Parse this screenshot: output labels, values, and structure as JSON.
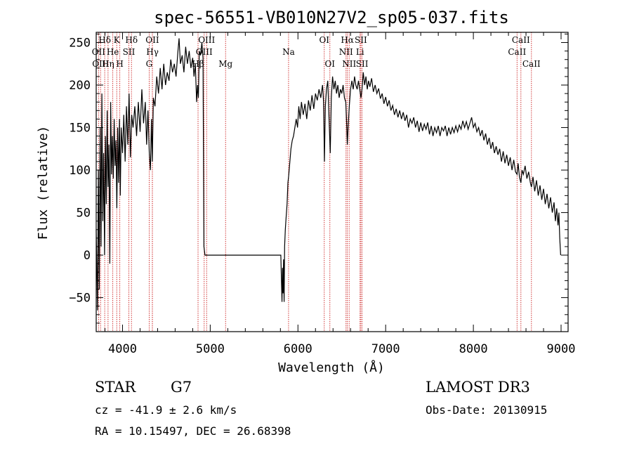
{
  "chart_data": {
    "type": "line",
    "title": "spec-56551-VB010N27V2_sp05-037.fits",
    "xlabel": "Wavelength (Å)",
    "ylabel": "Flux (relative)",
    "xlim": [
      3700,
      9080
    ],
    "ylim": [
      -90,
      262
    ],
    "xticks": [
      4000,
      5000,
      6000,
      7000,
      8000,
      9000
    ],
    "yticks": [
      -50,
      0,
      50,
      100,
      150,
      200,
      250
    ],
    "emission_lines": [
      {
        "label": "Hδ",
        "wave": 3797,
        "row": 0
      },
      {
        "label": "K",
        "wave": 3934,
        "row": 0
      },
      {
        "label": "Hδ",
        "wave": 4102,
        "row": 0
      },
      {
        "label": "OII",
        "wave": 4340,
        "row": 0
      },
      {
        "label": "OIII",
        "wave": 4959,
        "row": 0
      },
      {
        "label": "OI",
        "wave": 6300,
        "row": 0
      },
      {
        "label": "Hα",
        "wave": 6563,
        "row": 0
      },
      {
        "label": "SII",
        "wave": 6717,
        "row": 0
      },
      {
        "label": "CaII",
        "wave": 8542,
        "row": 0
      },
      {
        "label": "OII",
        "wave": 3727,
        "row": 1
      },
      {
        "label": "He",
        "wave": 3889,
        "row": 1
      },
      {
        "label": "SII",
        "wave": 4072,
        "row": 1
      },
      {
        "label": "Hγ",
        "wave": 4341,
        "row": 1
      },
      {
        "label": "OIII",
        "wave": 4931,
        "row": 1
      },
      {
        "label": "Na",
        "wave": 5893,
        "row": 1
      },
      {
        "label": "NII",
        "wave": 6548,
        "row": 1
      },
      {
        "label": "Li",
        "wave": 6708,
        "row": 1
      },
      {
        "label": "CaII",
        "wave": 8498,
        "row": 1
      },
      {
        "label": "OIII",
        "wave": 3750,
        "row": 2
      },
      {
        "label": "Hη",
        "wave": 3835,
        "row": 2
      },
      {
        "label": "H",
        "wave": 3969,
        "row": 2
      },
      {
        "label": "G",
        "wave": 4304,
        "row": 2
      },
      {
        "label": "Hβ",
        "wave": 4861,
        "row": 2
      },
      {
        "label": "Mg",
        "wave": 5175,
        "row": 2
      },
      {
        "label": "OI",
        "wave": 6364,
        "row": 2
      },
      {
        "label": "NII",
        "wave": 6584,
        "row": 2
      },
      {
        "label": "SII",
        "wave": 6731,
        "row": 2
      },
      {
        "label": "CaII",
        "wave": 8662,
        "row": 2
      }
    ],
    "series": [
      {
        "name": "flux",
        "points": [
          [
            3700,
            30
          ],
          [
            3715,
            -65
          ],
          [
            3725,
            100
          ],
          [
            3735,
            -40
          ],
          [
            3745,
            150
          ],
          [
            3755,
            10
          ],
          [
            3765,
            190
          ],
          [
            3775,
            40
          ],
          [
            3785,
            120
          ],
          [
            3795,
            0
          ],
          [
            3805,
            140
          ],
          [
            3815,
            60
          ],
          [
            3825,
            170
          ],
          [
            3835,
            80
          ],
          [
            3845,
            130
          ],
          [
            3855,
            -10
          ],
          [
            3865,
            180
          ],
          [
            3875,
            95
          ],
          [
            3885,
            140
          ],
          [
            3895,
            90
          ],
          [
            3905,
            160
          ],
          [
            3915,
            105
          ],
          [
            3925,
            135
          ],
          [
            3935,
            55
          ],
          [
            3945,
            150
          ],
          [
            3955,
            85
          ],
          [
            3965,
            160
          ],
          [
            3975,
            70
          ],
          [
            3985,
            150
          ],
          [
            4000,
            120
          ],
          [
            4015,
            165
          ],
          [
            4030,
            110
          ],
          [
            4045,
            175
          ],
          [
            4060,
            130
          ],
          [
            4075,
            190
          ],
          [
            4090,
            115
          ],
          [
            4105,
            165
          ],
          [
            4120,
            150
          ],
          [
            4140,
            175
          ],
          [
            4160,
            140
          ],
          [
            4180,
            180
          ],
          [
            4200,
            145
          ],
          [
            4220,
            195
          ],
          [
            4240,
            155
          ],
          [
            4260,
            180
          ],
          [
            4275,
            130
          ],
          [
            4290,
            170
          ],
          [
            4305,
            120
          ],
          [
            4318,
            100
          ],
          [
            4330,
            160
          ],
          [
            4340,
            110
          ],
          [
            4352,
            185
          ],
          [
            4370,
            175
          ],
          [
            4390,
            210
          ],
          [
            4410,
            190
          ],
          [
            4430,
            220
          ],
          [
            4450,
            195
          ],
          [
            4470,
            225
          ],
          [
            4490,
            200
          ],
          [
            4510,
            215
          ],
          [
            4530,
            205
          ],
          [
            4550,
            230
          ],
          [
            4570,
            215
          ],
          [
            4590,
            225
          ],
          [
            4610,
            210
          ],
          [
            4630,
            238
          ],
          [
            4645,
            255
          ],
          [
            4660,
            225
          ],
          [
            4680,
            235
          ],
          [
            4700,
            215
          ],
          [
            4720,
            245
          ],
          [
            4740,
            225
          ],
          [
            4760,
            240
          ],
          [
            4780,
            220
          ],
          [
            4800,
            232
          ],
          [
            4815,
            210
          ],
          [
            4830,
            225
          ],
          [
            4845,
            180
          ],
          [
            4855,
            200
          ],
          [
            4865,
            185
          ],
          [
            4875,
            240
          ],
          [
            4890,
            235
          ],
          [
            4905,
            250
          ],
          [
            4918,
            232
          ],
          [
            4928,
            10
          ],
          [
            4940,
            0
          ],
          [
            5000,
            0
          ],
          [
            5200,
            0
          ],
          [
            5400,
            0
          ],
          [
            5600,
            0
          ],
          [
            5790,
            0
          ],
          [
            5805,
            0
          ],
          [
            5812,
            -30
          ],
          [
            5818,
            -55
          ],
          [
            5824,
            -15
          ],
          [
            5830,
            -45
          ],
          [
            5836,
            -5
          ],
          [
            5842,
            -55
          ],
          [
            5848,
            10
          ],
          [
            5856,
            30
          ],
          [
            5866,
            45
          ],
          [
            5876,
            60
          ],
          [
            5886,
            85
          ],
          [
            5896,
            95
          ],
          [
            5908,
            110
          ],
          [
            5920,
            125
          ],
          [
            5935,
            135
          ],
          [
            5950,
            140
          ],
          [
            5965,
            150
          ],
          [
            5980,
            160
          ],
          [
            5995,
            150
          ],
          [
            6010,
            175
          ],
          [
            6025,
            160
          ],
          [
            6040,
            180
          ],
          [
            6060,
            165
          ],
          [
            6080,
            178
          ],
          [
            6100,
            160
          ],
          [
            6120,
            182
          ],
          [
            6140,
            170
          ],
          [
            6160,
            188
          ],
          [
            6180,
            172
          ],
          [
            6200,
            190
          ],
          [
            6220,
            182
          ],
          [
            6240,
            195
          ],
          [
            6260,
            185
          ],
          [
            6280,
            200
          ],
          [
            6292,
            180
          ],
          [
            6302,
            110
          ],
          [
            6312,
            175
          ],
          [
            6325,
            195
          ],
          [
            6340,
            205
          ],
          [
            6355,
            160
          ],
          [
            6368,
            120
          ],
          [
            6380,
            185
          ],
          [
            6395,
            210
          ],
          [
            6410,
            195
          ],
          [
            6425,
            205
          ],
          [
            6440,
            190
          ],
          [
            6455,
            200
          ],
          [
            6470,
            185
          ],
          [
            6485,
            195
          ],
          [
            6500,
            190
          ],
          [
            6515,
            200
          ],
          [
            6530,
            185
          ],
          [
            6545,
            180
          ],
          [
            6555,
            155
          ],
          [
            6563,
            130
          ],
          [
            6572,
            150
          ],
          [
            6585,
            175
          ],
          [
            6600,
            195
          ],
          [
            6615,
            205
          ],
          [
            6630,
            195
          ],
          [
            6645,
            210
          ],
          [
            6660,
            200
          ],
          [
            6675,
            195
          ],
          [
            6690,
            205
          ],
          [
            6705,
            195
          ],
          [
            6718,
            185
          ],
          [
            6730,
            195
          ],
          [
            6745,
            215
          ],
          [
            6760,
            200
          ],
          [
            6775,
            210
          ],
          [
            6790,
            195
          ],
          [
            6805,
            205
          ],
          [
            6820,
            198
          ],
          [
            6840,
            208
          ],
          [
            6860,
            192
          ],
          [
            6880,
            200
          ],
          [
            6900,
            190
          ],
          [
            6920,
            196
          ],
          [
            6940,
            184
          ],
          [
            6960,
            190
          ],
          [
            6980,
            178
          ],
          [
            7000,
            186
          ],
          [
            7020,
            175
          ],
          [
            7040,
            182
          ],
          [
            7060,
            170
          ],
          [
            7080,
            176
          ],
          [
            7100,
            165
          ],
          [
            7120,
            172
          ],
          [
            7140,
            162
          ],
          [
            7160,
            170
          ],
          [
            7180,
            160
          ],
          [
            7200,
            168
          ],
          [
            7220,
            158
          ],
          [
            7240,
            165
          ],
          [
            7260,
            150
          ],
          [
            7280,
            160
          ],
          [
            7300,
            155
          ],
          [
            7320,
            162
          ],
          [
            7340,
            150
          ],
          [
            7360,
            158
          ],
          [
            7380,
            145
          ],
          [
            7400,
            156
          ],
          [
            7420,
            146
          ],
          [
            7440,
            154
          ],
          [
            7460,
            148
          ],
          [
            7480,
            156
          ],
          [
            7500,
            142
          ],
          [
            7520,
            152
          ],
          [
            7540,
            140
          ],
          [
            7560,
            150
          ],
          [
            7580,
            144
          ],
          [
            7600,
            152
          ],
          [
            7620,
            140
          ],
          [
            7640,
            150
          ],
          [
            7660,
            146
          ],
          [
            7680,
            152
          ],
          [
            7700,
            140
          ],
          [
            7720,
            150
          ],
          [
            7740,
            142
          ],
          [
            7760,
            150
          ],
          [
            7780,
            144
          ],
          [
            7800,
            152
          ],
          [
            7820,
            145
          ],
          [
            7840,
            153
          ],
          [
            7860,
            148
          ],
          [
            7880,
            158
          ],
          [
            7900,
            150
          ],
          [
            7920,
            157
          ],
          [
            7940,
            148
          ],
          [
            7960,
            155
          ],
          [
            7980,
            162
          ],
          [
            8000,
            150
          ],
          [
            8020,
            155
          ],
          [
            8040,
            145
          ],
          [
            8060,
            150
          ],
          [
            8080,
            140
          ],
          [
            8100,
            147
          ],
          [
            8120,
            135
          ],
          [
            8140,
            143
          ],
          [
            8160,
            130
          ],
          [
            8180,
            138
          ],
          [
            8200,
            125
          ],
          [
            8220,
            133
          ],
          [
            8240,
            120
          ],
          [
            8260,
            128
          ],
          [
            8280,
            118
          ],
          [
            8300,
            125
          ],
          [
            8320,
            110
          ],
          [
            8340,
            122
          ],
          [
            8360,
            108
          ],
          [
            8380,
            118
          ],
          [
            8400,
            105
          ],
          [
            8420,
            115
          ],
          [
            8440,
            100
          ],
          [
            8460,
            112
          ],
          [
            8480,
            98
          ],
          [
            8498,
            95
          ],
          [
            8510,
            108
          ],
          [
            8525,
            92
          ],
          [
            8542,
            85
          ],
          [
            8555,
            100
          ],
          [
            8570,
            95
          ],
          [
            8590,
            105
          ],
          [
            8610,
            90
          ],
          [
            8630,
            98
          ],
          [
            8650,
            85
          ],
          [
            8662,
            80
          ],
          [
            8680,
            92
          ],
          [
            8700,
            75
          ],
          [
            8720,
            88
          ],
          [
            8740,
            70
          ],
          [
            8760,
            82
          ],
          [
            8780,
            65
          ],
          [
            8800,
            78
          ],
          [
            8820,
            60
          ],
          [
            8840,
            72
          ],
          [
            8860,
            55
          ],
          [
            8880,
            68
          ],
          [
            8900,
            50
          ],
          [
            8920,
            62
          ],
          [
            8935,
            40
          ],
          [
            8950,
            55
          ],
          [
            8965,
            35
          ],
          [
            8975,
            50
          ],
          [
            8985,
            20
          ],
          [
            8995,
            0
          ]
        ]
      }
    ]
  },
  "info": {
    "object_class": "STAR",
    "subclass": "G7",
    "survey": "LAMOST DR3",
    "redshift_text": "cz = -41.9 ± 2.6 km/s",
    "obs_date": "Obs-Date: 20130915",
    "coords_text": "RA =  10.15497, DEC =  26.68398"
  },
  "colors": {
    "line_marker": "#cc2222",
    "spectrum": "#000000",
    "axes": "#000000"
  }
}
